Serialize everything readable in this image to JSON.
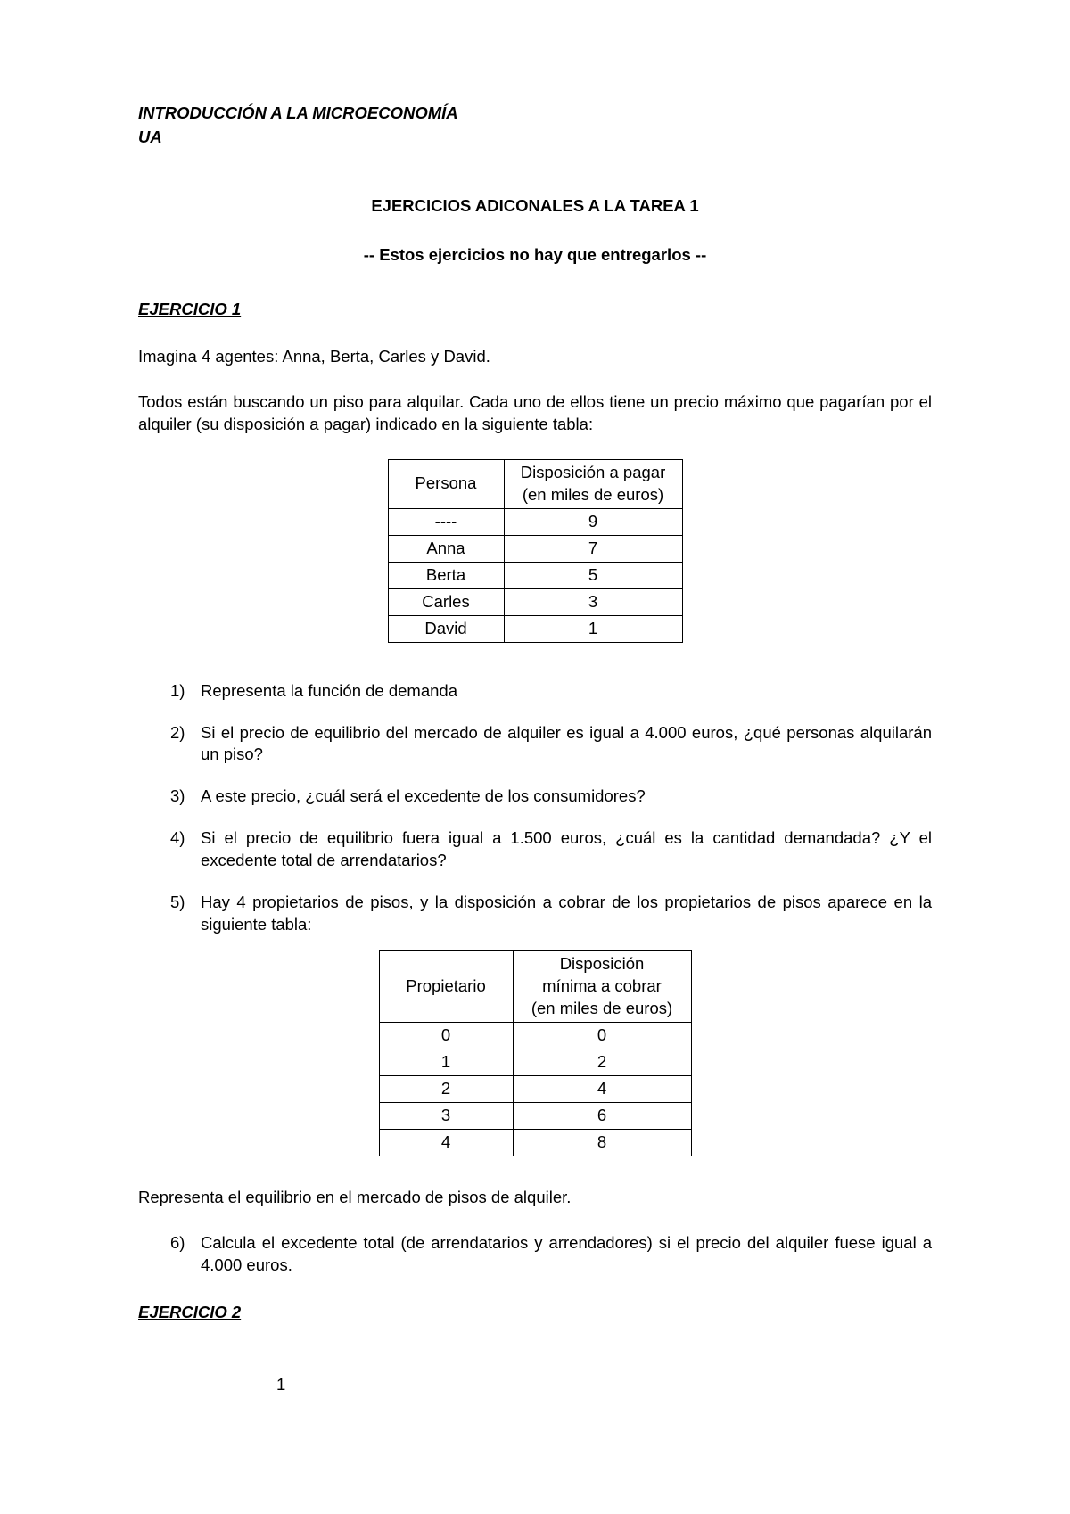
{
  "header": {
    "title": "INTRODUCCIÓN A LA MICROECONOMÍA",
    "subtitle": "UA"
  },
  "main": {
    "title": "EJERCICIOS ADICONALES A LA TAREA 1",
    "subtitle": "-- Estos ejercicios no hay que entregarlos --"
  },
  "exercise1": {
    "heading": "EJERCICIO 1",
    "p1": "Imagina  4 agentes: Anna, Berta, Carles y David.",
    "p2": "Todos están buscando un piso para alquilar. Cada uno de ellos tiene un precio máximo que pagarían por el alquiler (su disposición a pagar) indicado en la siguiente tabla:",
    "table1": {
      "header_col1": "Persona",
      "header_col2_line1": "Disposición a pagar",
      "header_col2_line2": "(en miles de euros)",
      "rows": [
        {
          "persona": "----",
          "valor": "9"
        },
        {
          "persona": "Anna",
          "valor": "7"
        },
        {
          "persona": "Berta",
          "valor": "5"
        },
        {
          "persona": "Carles",
          "valor": "3"
        },
        {
          "persona": "David",
          "valor": "1"
        }
      ]
    },
    "questions_a": [
      {
        "n": "1)",
        "text": "Representa la función de demanda"
      },
      {
        "n": "2)",
        "text": "Si el precio de equilibrio del mercado de alquiler es igual a 4.000 euros, ¿qué personas alquilarán un piso?"
      },
      {
        "n": "3)",
        "text": "A este precio, ¿cuál será el excedente de los consumidores?"
      },
      {
        "n": "4)",
        "text": "Si el precio de equilibrio fuera igual a 1.500 euros, ¿cuál es la cantidad demandada? ¿Y el excedente total de arrendatarios?"
      },
      {
        "n": "5)",
        "text": "Hay 4 propietarios de pisos, y la disposición a cobrar de los propietarios de pisos aparece en la siguiente tabla:"
      }
    ],
    "table2": {
      "header_col1": "Propietario",
      "header_col2_line1": "Disposición",
      "header_col2_line2": "mínima a cobrar",
      "header_col2_line3": "(en miles de euros)",
      "rows": [
        {
          "prop": "0",
          "valor": "0"
        },
        {
          "prop": "1",
          "valor": "2"
        },
        {
          "prop": "2",
          "valor": "4"
        },
        {
          "prop": "3",
          "valor": "6"
        },
        {
          "prop": "4",
          "valor": "8"
        }
      ]
    },
    "p3": "Representa el equilibrio en el mercado de pisos de alquiler.",
    "questions_b": [
      {
        "n": "6)",
        "text": "Calcula el excedente total (de arrendatarios y arrendadores) si el precio del alquiler fuese igual a 4.000 euros."
      }
    ]
  },
  "exercise2": {
    "heading": "EJERCICIO 2"
  },
  "page_number": "1",
  "colors": {
    "text": "#000000",
    "background": "#ffffff",
    "border": "#000000"
  }
}
